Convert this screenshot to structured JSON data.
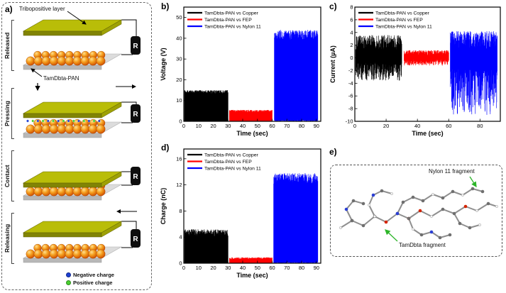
{
  "figure": {
    "panel_a_label": "a)",
    "panel_b_label": "b)",
    "panel_c_label": "c)",
    "panel_d_label": "d)",
    "panel_e_label": "e)"
  },
  "panel_a": {
    "tribopositive_label": "Tribopositive layer",
    "material_label": "TamDbta-PAN",
    "stages": [
      "Released",
      "Pressing",
      "Contact",
      "Releasing"
    ],
    "resistor_label": "R",
    "charge_legend": [
      {
        "label": "Negative charge",
        "color": "#1d3fd4"
      },
      {
        "label": "Positive charge",
        "color": "#49d12f"
      }
    ]
  },
  "chart_data": [
    {
      "id": "voltage",
      "panel": "b",
      "type": "line",
      "xlabel": "Time (sec)",
      "ylabel": "Voltage (V)",
      "xlim": [
        0,
        93
      ],
      "ylim": [
        0,
        55
      ],
      "xticks": [
        0,
        10,
        20,
        30,
        40,
        50,
        60,
        70,
        80,
        90
      ],
      "yticks": [
        0,
        10,
        20,
        30,
        40,
        50
      ],
      "legend_position": "top-left",
      "grid": false,
      "series": [
        {
          "name": "TamDbta-PAN vs Copper",
          "color": "#000000",
          "signal": "unipolar",
          "t_start": 0.5,
          "t_end": 30,
          "amplitude": 15
        },
        {
          "name": "TamDbta-PAN vs FEP",
          "color": "#ff0000",
          "signal": "unipolar",
          "t_start": 31,
          "t_end": 60,
          "amplitude": 5.5
        },
        {
          "name": "TamDbta-PAN vs Nylon 11",
          "color": "#0000ff",
          "signal": "unipolar",
          "t_start": 61.5,
          "t_end": 91,
          "amplitude": 44
        }
      ]
    },
    {
      "id": "current",
      "panel": "c",
      "type": "line",
      "xlabel": "Time (sec)",
      "ylabel": "Current (µA)",
      "xlim": [
        0,
        93
      ],
      "ylim": [
        -10,
        8
      ],
      "xticks": [
        0,
        20,
        40,
        60,
        80
      ],
      "yticks": [
        -10,
        -8,
        -6,
        -4,
        -2,
        0,
        2,
        4,
        6,
        8
      ],
      "legend_position": "top-left",
      "grid": false,
      "series": [
        {
          "name": "TamDbta-PAN vs Copper",
          "color": "#000000",
          "signal": "bipolar",
          "t_start": 0.5,
          "t_end": 30,
          "pos": 3.6,
          "neg": -3.6
        },
        {
          "name": "TamDbta-PAN vs FEP",
          "color": "#ff0000",
          "signal": "bipolar",
          "t_start": 31.5,
          "t_end": 60,
          "pos": 1.2,
          "neg": -1.2
        },
        {
          "name": "TamDbta-PAN vs Nylon 11",
          "color": "#0000ff",
          "signal": "bipolar",
          "t_start": 61,
          "t_end": 91,
          "pos": 4.2,
          "neg": -9
        }
      ]
    },
    {
      "id": "charge",
      "panel": "d",
      "type": "line",
      "xlabel": "Time (sec)",
      "ylabel": "Charge (nC)",
      "xlim": [
        0,
        93
      ],
      "ylim": [
        0,
        17.5
      ],
      "xticks": [
        0,
        10,
        20,
        30,
        40,
        50,
        60,
        70,
        80,
        90
      ],
      "yticks": [
        0,
        4,
        8,
        12,
        16
      ],
      "legend_position": "top-left",
      "grid": false,
      "series": [
        {
          "name": "TamDbta-PAN vs Copper",
          "color": "#000000",
          "signal": "unipolar",
          "t_start": 0.5,
          "t_end": 30,
          "amplitude": 5.2
        },
        {
          "name": "TamDbta-PAN vs FEP",
          "color": "#ff0000",
          "signal": "unipolar",
          "t_start": 31,
          "t_end": 60,
          "amplitude": 0.9
        },
        {
          "name": "TamDbta-PAN vs Nylon 11",
          "color": "#0000ff",
          "signal": "unipolar",
          "t_start": 61,
          "t_end": 91,
          "amplitude": 13.8
        }
      ]
    }
  ],
  "panel_e": {
    "nylon_label": "Nylon 11 fragment",
    "tamdbta_label": "TamDbta fragment",
    "arrow_color": "#2db529"
  }
}
